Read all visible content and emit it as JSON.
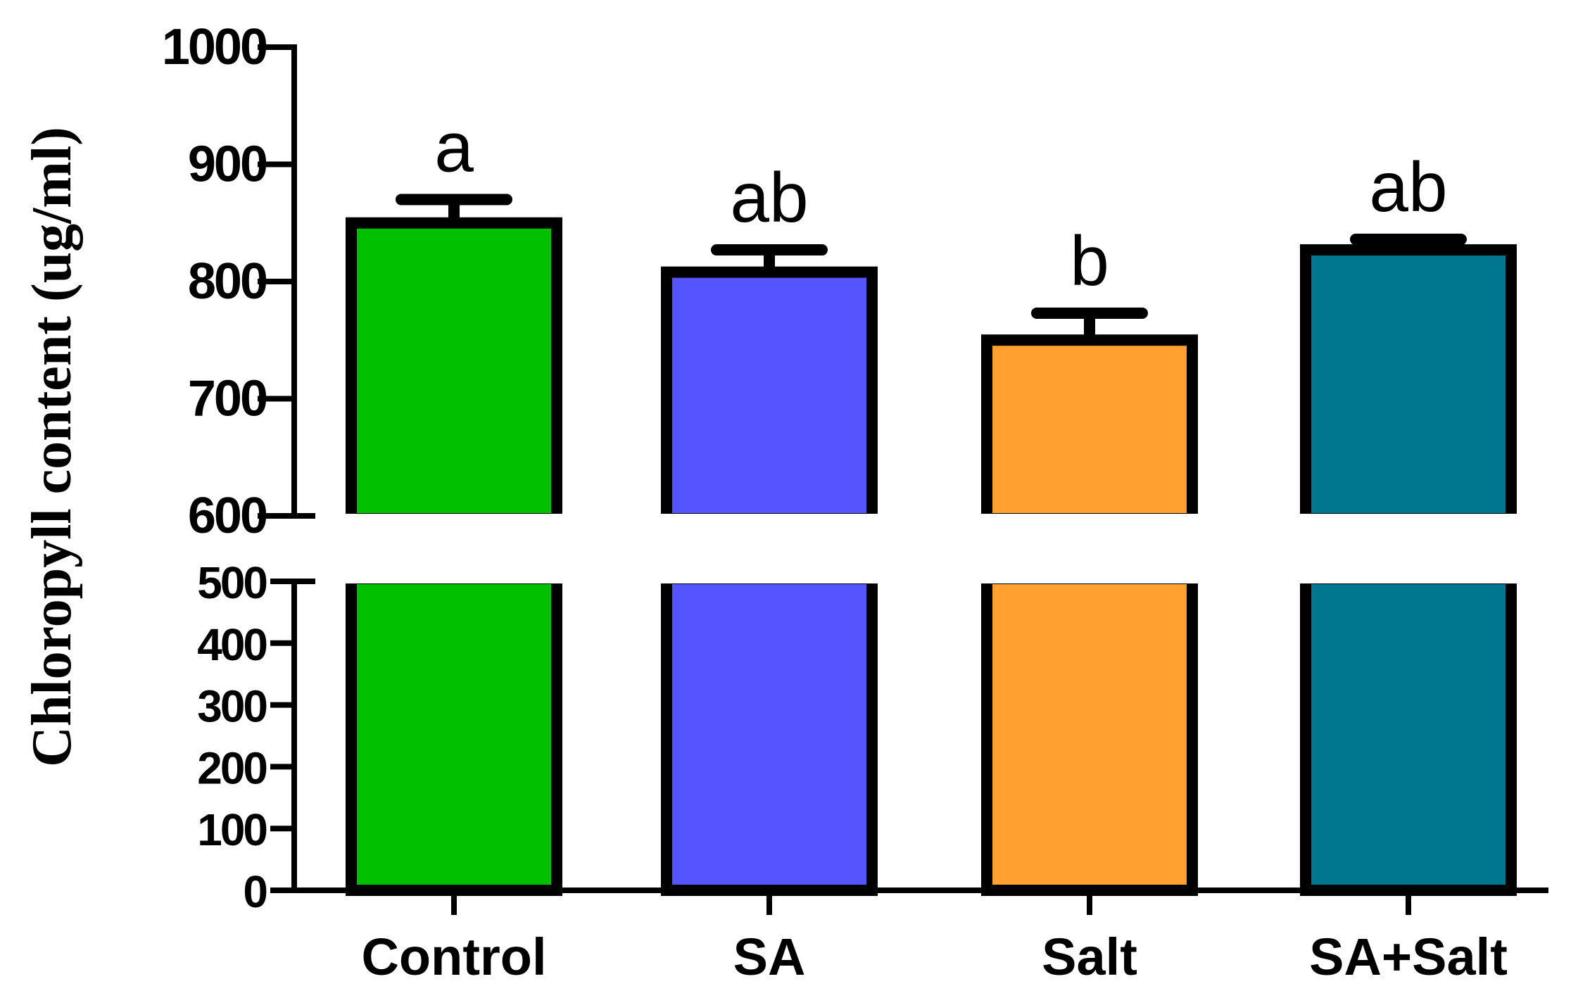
{
  "chart_data": {
    "type": "bar",
    "title": "",
    "xlabel": "",
    "ylabel": "Chloropyll content (ug/ml)",
    "categories": [
      "Control",
      "SA",
      "Salt",
      "SA+Salt"
    ],
    "values": [
      850,
      808,
      750,
      827
    ],
    "error": [
      20,
      19,
      23,
      9
    ],
    "significance_letters": [
      "a",
      "ab",
      "b",
      "ab"
    ],
    "bar_colors": [
      "#00c000",
      "#5555ff",
      "#ffa030",
      "#00778f"
    ],
    "axis_break": [
      500,
      600
    ],
    "ylim": [
      0,
      1000
    ],
    "yticks_lower": [
      "0",
      "100",
      "200",
      "300",
      "400",
      "500"
    ],
    "yticks_upper": [
      "600",
      "700",
      "800",
      "900",
      "1000"
    ],
    "grid": false,
    "legend": "none"
  }
}
